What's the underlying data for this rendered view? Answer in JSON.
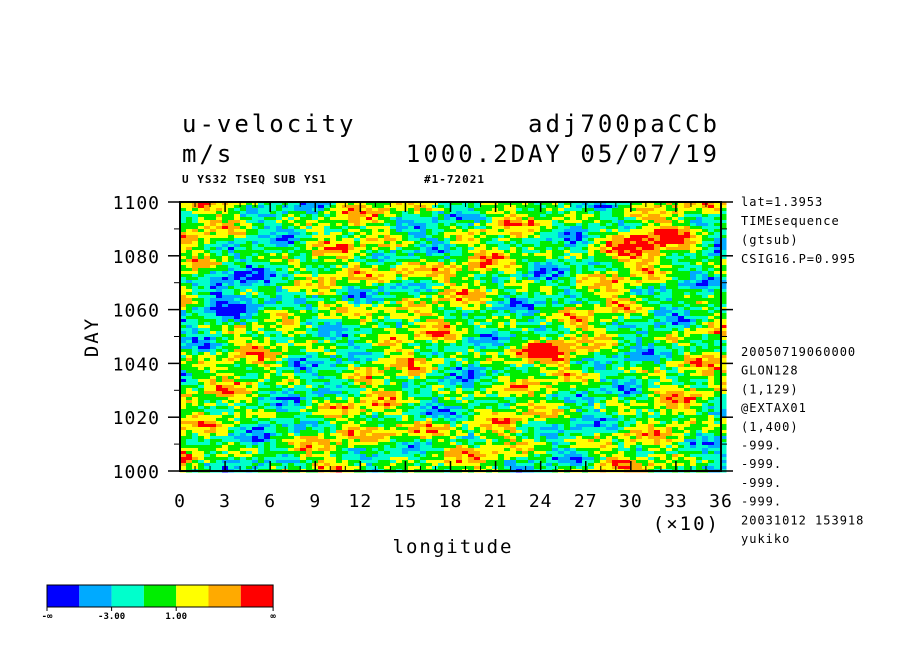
{
  "header": {
    "variable": "u-velocity",
    "experiment": "adj700paCCb",
    "units": "m/s",
    "time_label": "1000.2DAY 05/07/19",
    "subtitle_left": "U YS32 TSEQ SUB YS1",
    "subtitle_right": "#1-72021"
  },
  "side_info_top": [
    "lat=1.3953",
    "TIMEsequence",
    "(gtsub)",
    "CSIG16.P=0.995"
  ],
  "side_info_bottom": [
    "20050719060000",
    "GLON128",
    "(1,129)",
    "@EXTAX01",
    "(1,400)",
    "-999.",
    "-999.",
    "-999.",
    "-999.",
    "20031012 153918",
    "yukiko"
  ],
  "colorbar": {
    "colors": [
      "#0000ff",
      "#00aaff",
      "#00ffcc",
      "#00ee00",
      "#ffff00",
      "#ffaa00",
      "#ff0000"
    ],
    "labels": [
      "-∞",
      "-3.00",
      "1.00",
      "∞"
    ]
  },
  "chart_data": {
    "type": "heatmap",
    "title": "u-velocity",
    "xlabel": "longitude",
    "ylabel": "DAY",
    "x_scale_note": "(×10)",
    "xlim": [
      0,
      36
    ],
    "ylim": [
      1000,
      1100
    ],
    "x_ticks": [
      "0",
      "3",
      "6",
      "9",
      "12",
      "15",
      "18",
      "21",
      "24",
      "27",
      "30",
      "33",
      "36"
    ],
    "y_ticks": [
      "1000",
      "1020",
      "1040",
      "1060",
      "1080",
      "1100"
    ],
    "color_levels": [
      "-∞",
      "-3.00",
      "1.00",
      "∞"
    ]
  }
}
